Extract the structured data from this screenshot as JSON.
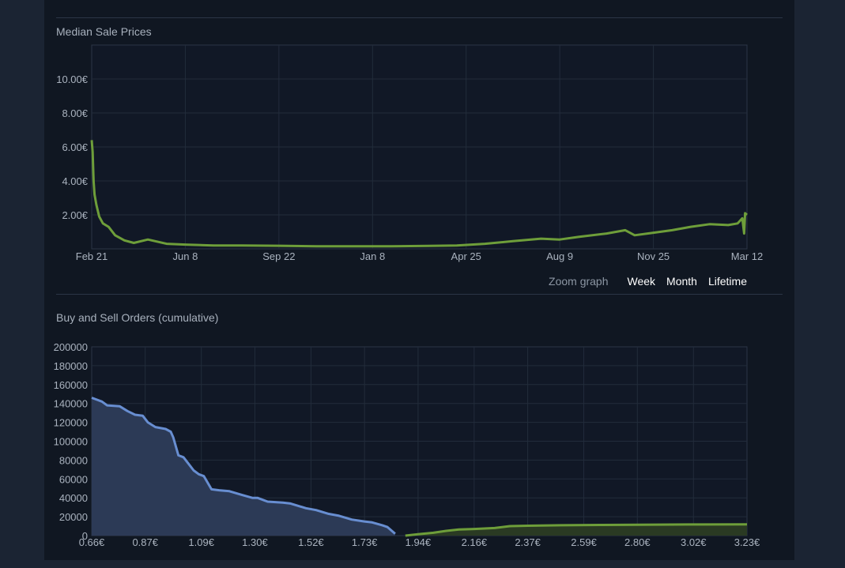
{
  "chart_data": [
    {
      "type": "line",
      "title": "Median Sale Prices",
      "y_ticks": [
        "10.00€",
        "8.00€",
        "6.00€",
        "4.00€",
        "2.00€"
      ],
      "y_tick_values": [
        10,
        8,
        6,
        4,
        2
      ],
      "x_ticks": [
        "Feb 21",
        "Jun 8",
        "Sep 22",
        "Jan 8",
        "Apr 25",
        "Aug 9",
        "Nov 25",
        "Mar 12"
      ],
      "ylim": [
        0,
        12
      ],
      "xlim": [
        0,
        7
      ],
      "grid": true,
      "series": [
        {
          "color": "#6e9e3a",
          "x": [
            0,
            0.01,
            0.02,
            0.03,
            0.05,
            0.08,
            0.12,
            0.18,
            0.25,
            0.35,
            0.45,
            0.6,
            0.8,
            1.0,
            1.3,
            1.6,
            2.0,
            2.4,
            2.8,
            3.2,
            3.6,
            3.9,
            4.2,
            4.5,
            4.8,
            5.0,
            5.2,
            5.5,
            5.7,
            5.8,
            6.0,
            6.2,
            6.4,
            6.6,
            6.8,
            6.9,
            6.95,
            6.97,
            6.98,
            7.0
          ],
          "y": [
            6.4,
            5.7,
            4.0,
            3.2,
            2.6,
            1.9,
            1.5,
            1.3,
            0.8,
            0.5,
            0.35,
            0.55,
            0.3,
            0.25,
            0.2,
            0.2,
            0.18,
            0.15,
            0.15,
            0.15,
            0.17,
            0.2,
            0.3,
            0.45,
            0.6,
            0.55,
            0.7,
            0.9,
            1.1,
            0.8,
            0.95,
            1.1,
            1.3,
            1.45,
            1.4,
            1.5,
            1.8,
            0.9,
            2.1,
            2.0
          ]
        }
      ]
    },
    {
      "type": "area",
      "title": "Buy and Sell Orders (cumulative)",
      "y_ticks": [
        "200000",
        "180000",
        "160000",
        "140000",
        "120000",
        "100000",
        "80000",
        "60000",
        "40000",
        "20000",
        "0"
      ],
      "y_tick_values": [
        200000,
        180000,
        160000,
        140000,
        120000,
        100000,
        80000,
        60000,
        40000,
        20000,
        0
      ],
      "x_ticks": [
        "0.66€",
        "0.87€",
        "1.09€",
        "1.30€",
        "1.52€",
        "1.73€",
        "1.94€",
        "2.16€",
        "2.37€",
        "2.59€",
        "2.80€",
        "3.02€",
        "3.23€"
      ],
      "x_tick_values": [
        0.66,
        0.87,
        1.09,
        1.3,
        1.52,
        1.73,
        1.94,
        2.16,
        2.37,
        2.59,
        2.8,
        3.02,
        3.23
      ],
      "xlim": [
        0.66,
        3.23
      ],
      "ylim": [
        0,
        200000
      ],
      "grid": true,
      "series": [
        {
          "color": "#688ed1",
          "fill": "#2c3a56",
          "x": [
            0.66,
            0.7,
            0.72,
            0.77,
            0.8,
            0.83,
            0.86,
            0.88,
            0.91,
            0.95,
            0.97,
            0.98,
            1.0,
            1.02,
            1.04,
            1.06,
            1.08,
            1.1,
            1.13,
            1.16,
            1.2,
            1.25,
            1.29,
            1.31,
            1.35,
            1.41,
            1.44,
            1.5,
            1.54,
            1.59,
            1.63,
            1.68,
            1.73,
            1.76,
            1.8,
            1.82,
            1.85
          ],
          "y": [
            146000,
            142000,
            138000,
            137000,
            132000,
            128000,
            127000,
            120000,
            115000,
            113000,
            110000,
            104000,
            85000,
            83000,
            76000,
            69000,
            65000,
            63000,
            49000,
            48000,
            47000,
            43000,
            40000,
            40000,
            36000,
            35000,
            34000,
            29000,
            27000,
            23000,
            21000,
            17000,
            15000,
            14000,
            11000,
            9000,
            2000
          ]
        },
        {
          "color": "#6e9e3a",
          "fill": "#2a3a23",
          "x": [
            1.89,
            1.94,
            2.0,
            2.05,
            2.1,
            2.16,
            2.24,
            2.3,
            2.37,
            2.5,
            2.65,
            2.8,
            3.0,
            3.23
          ],
          "y": [
            0,
            1500,
            3000,
            5000,
            6500,
            7000,
            8000,
            10000,
            10500,
            11000,
            11300,
            11500,
            11800,
            12000
          ]
        }
      ]
    }
  ],
  "zoom": {
    "label": "Zoom graph",
    "week": "Week",
    "month": "Month",
    "lifetime": "Lifetime"
  }
}
